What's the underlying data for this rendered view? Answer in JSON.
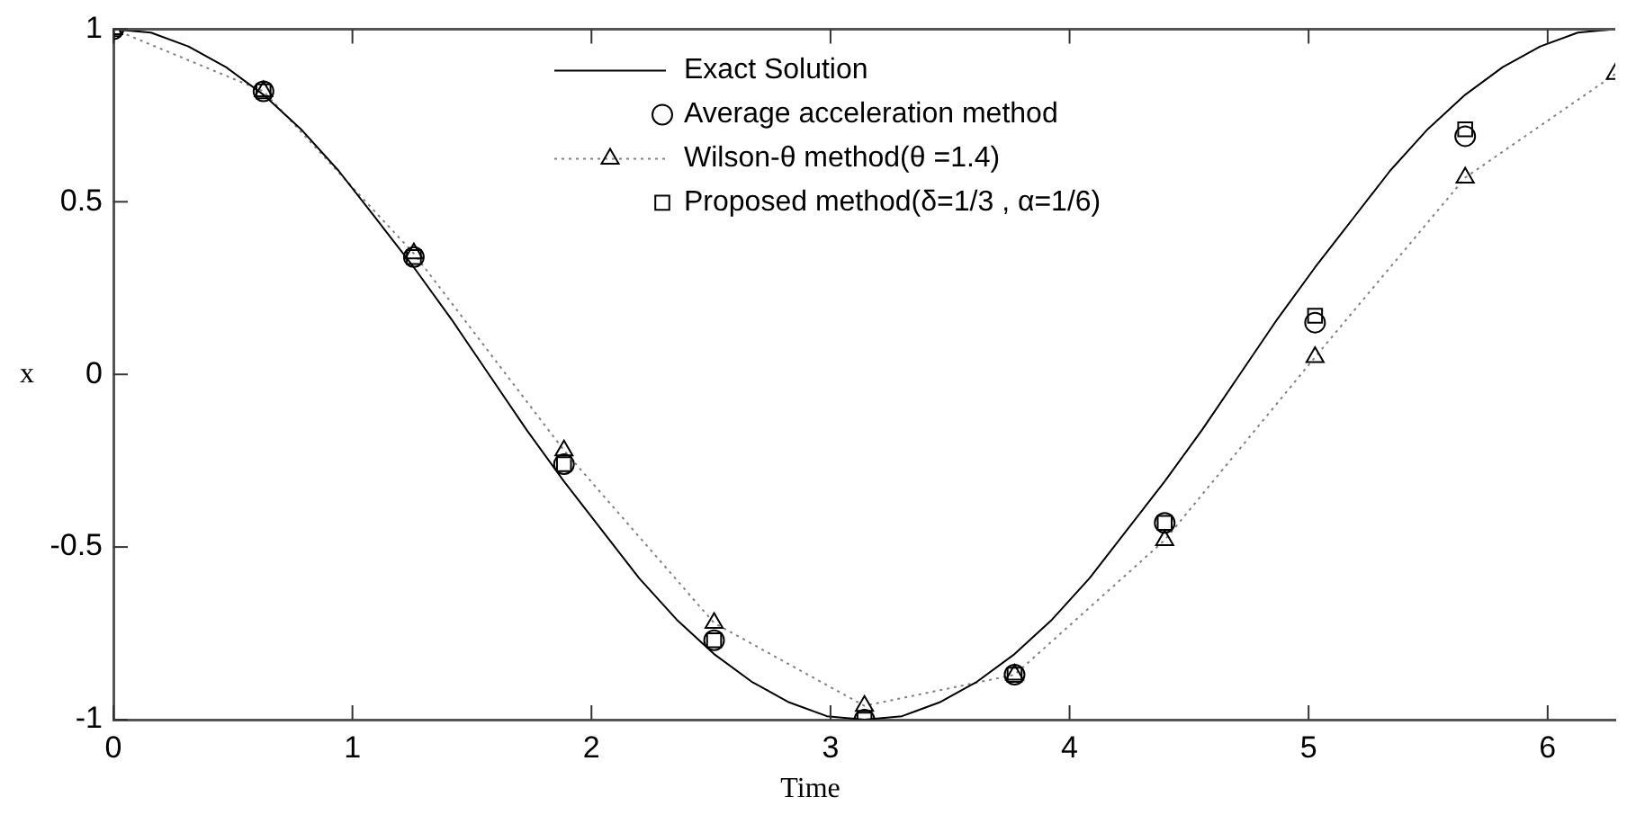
{
  "chart_data": {
    "type": "line",
    "xlabel": "Time",
    "ylabel": "x",
    "xlim": [
      0,
      6.283
    ],
    "ylim": [
      -1,
      1
    ],
    "xticks": [
      0,
      1,
      2,
      3,
      4,
      5,
      6
    ],
    "yticks": [
      -1,
      -0.5,
      0,
      0.5,
      1
    ],
    "grid": false,
    "legend": "top",
    "series": [
      {
        "name": "Exact Solution",
        "type": "line",
        "color": "#000000",
        "marker": "none",
        "line_style": "solid",
        "x": [
          0,
          0.157,
          0.314,
          0.471,
          0.628,
          0.785,
          0.942,
          1.1,
          1.257,
          1.414,
          1.571,
          1.728,
          1.885,
          2.042,
          2.199,
          2.356,
          2.513,
          2.67,
          2.827,
          2.985,
          3.142,
          3.299,
          3.456,
          3.613,
          3.77,
          3.927,
          4.084,
          4.241,
          4.398,
          4.555,
          4.712,
          4.869,
          5.027,
          5.184,
          5.341,
          5.498,
          5.655,
          5.812,
          5.969,
          6.126,
          6.283
        ],
        "values": [
          1,
          0.99,
          0.95,
          0.89,
          0.81,
          0.71,
          0.59,
          0.45,
          0.31,
          0.16,
          0,
          -0.16,
          -0.31,
          -0.45,
          -0.59,
          -0.71,
          -0.81,
          -0.89,
          -0.95,
          -0.99,
          -1,
          -0.99,
          -0.95,
          -0.89,
          -0.81,
          -0.71,
          -0.59,
          -0.45,
          -0.31,
          -0.16,
          0,
          0.16,
          0.31,
          0.45,
          0.59,
          0.71,
          0.81,
          0.89,
          0.95,
          0.99,
          1
        ]
      },
      {
        "name": "Average acceleration method",
        "type": "scatter",
        "color": "#000000",
        "marker": "circle",
        "x": [
          0,
          0.628,
          1.257,
          1.885,
          2.513,
          3.142,
          3.77,
          4.398,
          5.027,
          5.655
        ],
        "values": [
          1,
          0.82,
          0.34,
          -0.26,
          -0.77,
          -1,
          -0.87,
          -0.43,
          0.15,
          0.69
        ]
      },
      {
        "name": "Wilson-θ method(θ =1.4)",
        "type": "line",
        "color": "#808080",
        "marker": "triangle",
        "line_style": "dotted",
        "x": [
          0,
          0.628,
          1.257,
          1.885,
          2.513,
          3.142,
          3.77,
          4.398,
          5.027,
          5.655,
          6.283
        ],
        "values": [
          1,
          0.82,
          0.35,
          -0.22,
          -0.72,
          -0.96,
          -0.87,
          -0.48,
          0.05,
          0.57,
          0.87
        ]
      },
      {
        "name": "Proposed method(δ=1/3 , α=1/6)",
        "type": "scatter",
        "color": "#000000",
        "marker": "square",
        "x": [
          0,
          0.628,
          1.257,
          1.885,
          2.513,
          3.142,
          3.77,
          4.398,
          5.027,
          5.655
        ],
        "values": [
          1,
          0.82,
          0.34,
          -0.26,
          -0.77,
          -1,
          -0.87,
          -0.43,
          0.17,
          0.71
        ]
      }
    ]
  }
}
